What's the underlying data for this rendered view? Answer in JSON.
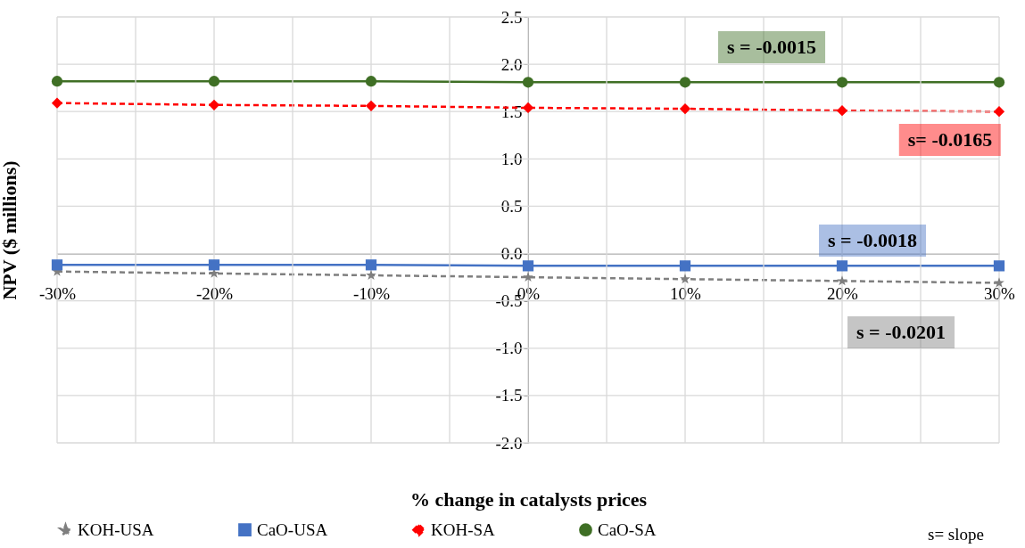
{
  "chart_data": {
    "type": "line",
    "xlabel": "% change in catalysts prices",
    "ylabel": "NPV ($ millions)",
    "x": [
      -30,
      -20,
      -10,
      0,
      10,
      20,
      30
    ],
    "series": [
      {
        "name": "KOH-USA",
        "color": "#7f7f7f",
        "marker": "star",
        "line_style": "dashed",
        "values": [
          -0.19,
          -0.21,
          -0.23,
          -0.25,
          -0.27,
          -0.29,
          -0.31
        ]
      },
      {
        "name": "CaO-USA",
        "color": "#4472c4",
        "marker": "square",
        "line_style": "solid",
        "values": [
          -0.12,
          -0.12,
          -0.12,
          -0.13,
          -0.13,
          -0.13,
          -0.13
        ]
      },
      {
        "name": "KOH-SA",
        "color": "#ff0000",
        "marker": "diamond",
        "line_style": "dashed",
        "values": [
          1.59,
          1.57,
          1.56,
          1.54,
          1.53,
          1.51,
          1.5
        ]
      },
      {
        "name": "CaO-SA",
        "color": "#3f6f25",
        "marker": "circle",
        "line_style": "solid",
        "values": [
          1.82,
          1.82,
          1.82,
          1.81,
          1.81,
          1.81,
          1.81
        ]
      }
    ],
    "annotations": [
      "s = -0.0201",
      "s = -0.0018",
      "s= -0.0165",
      "s = -0.0015",
      "s= slope"
    ],
    "xlim": [
      -30,
      30
    ],
    "ylim": [
      -2,
      2.5
    ],
    "xticks": [
      {
        "value": -30,
        "label": "-30%"
      },
      {
        "value": -25,
        "label": null
      },
      {
        "value": -20,
        "label": "-20%"
      },
      {
        "value": -15,
        "label": null
      },
      {
        "value": -10,
        "label": "-10%"
      },
      {
        "value": -5,
        "label": null
      },
      {
        "value": 0,
        "label": "0%"
      },
      {
        "value": 5,
        "label": null
      },
      {
        "value": 10,
        "label": "10%"
      },
      {
        "value": 15,
        "label": null
      },
      {
        "value": 20,
        "label": "20%"
      },
      {
        "value": 25,
        "label": null
      },
      {
        "value": 30,
        "label": "30%"
      }
    ],
    "yticks": [
      {
        "value": -2,
        "label": "-2.0"
      },
      {
        "value": -1.5,
        "label": "-1.5"
      },
      {
        "value": -1,
        "label": "-1.0"
      },
      {
        "value": -0.5,
        "label": "-0.5"
      },
      {
        "value": 0,
        "label": "0.0"
      },
      {
        "value": 0.5,
        "label": "0.5"
      },
      {
        "value": 1,
        "label": "1.0"
      },
      {
        "value": 1.5,
        "label": "1.5"
      },
      {
        "value": 2,
        "label": "2.0"
      },
      {
        "value": 2.5,
        "label": "2.5"
      }
    ],
    "grid": true,
    "legend": "bottom"
  }
}
